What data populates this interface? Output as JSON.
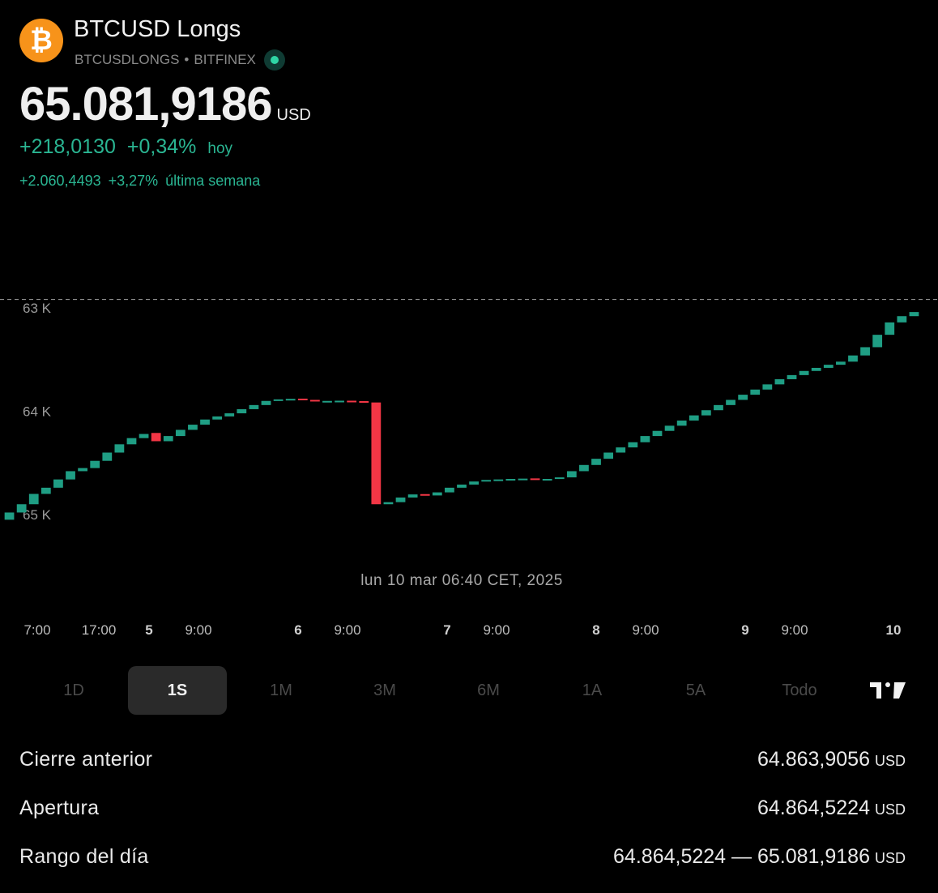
{
  "header": {
    "logo_symbol": "₿",
    "name": "BTCUSD Longs",
    "ticker": "BTCUSDLONGS",
    "separator": "•",
    "exchange": "BITFINEX",
    "status_icon": "market-open-dot-icon"
  },
  "quote": {
    "price": "65.081,9186",
    "currency": "USD",
    "change": "+218,0130",
    "change_pct": "+0,34%",
    "change_label": "hoy",
    "week_change": "+2.060,4493",
    "week_change_pct": "+3,27%",
    "week_label": "última semana"
  },
  "chart": {
    "y_labels": [
      "65 K",
      "64 K",
      "63 K"
    ],
    "tooltip": "lun 10 mar 06:40 CET, 2025",
    "x_labels": [
      {
        "text": "7:00",
        "day": false
      },
      {
        "text": "17:00",
        "day": false
      },
      {
        "text": "5",
        "day": true
      },
      {
        "text": "9:00",
        "day": false
      },
      {
        "text": "6",
        "day": true
      },
      {
        "text": "9:00",
        "day": false
      },
      {
        "text": "7",
        "day": true
      },
      {
        "text": "9:00",
        "day": false
      },
      {
        "text": "8",
        "day": true
      },
      {
        "text": "9:00",
        "day": false
      },
      {
        "text": "9",
        "day": true
      },
      {
        "text": "9:00",
        "day": false
      },
      {
        "text": "10",
        "day": true
      }
    ]
  },
  "chart_data": {
    "type": "candlestick",
    "title": "",
    "ylim": [
      62700,
      65100
    ],
    "y_ticks": [
      63000,
      64000,
      65000
    ],
    "last_price": 65081.9186,
    "colors": {
      "up": "#1f9e84",
      "down": "#f23645"
    },
    "candles": [
      {
        "o": 62950,
        "c": 63020
      },
      {
        "o": 63020,
        "c": 63100
      },
      {
        "o": 63100,
        "c": 63200
      },
      {
        "o": 63200,
        "c": 63260
      },
      {
        "o": 63260,
        "c": 63340
      },
      {
        "o": 63340,
        "c": 63420
      },
      {
        "o": 63420,
        "c": 63450
      },
      {
        "o": 63450,
        "c": 63520
      },
      {
        "o": 63520,
        "c": 63600
      },
      {
        "o": 63600,
        "c": 63680
      },
      {
        "o": 63680,
        "c": 63740
      },
      {
        "o": 63740,
        "c": 63780
      },
      {
        "o": 63790,
        "c": 63710
      },
      {
        "o": 63710,
        "c": 63760
      },
      {
        "o": 63760,
        "c": 63820
      },
      {
        "o": 63820,
        "c": 63870
      },
      {
        "o": 63870,
        "c": 63920
      },
      {
        "o": 63920,
        "c": 63950
      },
      {
        "o": 63950,
        "c": 63980
      },
      {
        "o": 63980,
        "c": 64020
      },
      {
        "o": 64020,
        "c": 64060
      },
      {
        "o": 64060,
        "c": 64100
      },
      {
        "o": 64100,
        "c": 64115
      },
      {
        "o": 64115,
        "c": 64120
      },
      {
        "o": 64122,
        "c": 64110
      },
      {
        "o": 64110,
        "c": 64095
      },
      {
        "o": 64095,
        "c": 64100
      },
      {
        "o": 64100,
        "c": 64102
      },
      {
        "o": 64102,
        "c": 64098
      },
      {
        "o": 64098,
        "c": 64085
      },
      {
        "o": 64085,
        "c": 63100
      },
      {
        "o": 63100,
        "c": 63120
      },
      {
        "o": 63120,
        "c": 63165
      },
      {
        "o": 63165,
        "c": 63195
      },
      {
        "o": 63198,
        "c": 63185
      },
      {
        "o": 63185,
        "c": 63215
      },
      {
        "o": 63215,
        "c": 63260
      },
      {
        "o": 63260,
        "c": 63290
      },
      {
        "o": 63290,
        "c": 63320
      },
      {
        "o": 63320,
        "c": 63335
      },
      {
        "o": 63335,
        "c": 63340
      },
      {
        "o": 63340,
        "c": 63345
      },
      {
        "o": 63345,
        "c": 63348
      },
      {
        "o": 63350,
        "c": 63340
      },
      {
        "o": 63340,
        "c": 63345
      },
      {
        "o": 63345,
        "c": 63360
      },
      {
        "o": 63360,
        "c": 63420
      },
      {
        "o": 63420,
        "c": 63480
      },
      {
        "o": 63480,
        "c": 63540
      },
      {
        "o": 63540,
        "c": 63600
      },
      {
        "o": 63600,
        "c": 63650
      },
      {
        "o": 63650,
        "c": 63700
      },
      {
        "o": 63700,
        "c": 63760
      },
      {
        "o": 63760,
        "c": 63810
      },
      {
        "o": 63810,
        "c": 63860
      },
      {
        "o": 63860,
        "c": 63910
      },
      {
        "o": 63910,
        "c": 63960
      },
      {
        "o": 63960,
        "c": 64010
      },
      {
        "o": 64010,
        "c": 64060
      },
      {
        "o": 64060,
        "c": 64110
      },
      {
        "o": 64110,
        "c": 64160
      },
      {
        "o": 64160,
        "c": 64210
      },
      {
        "o": 64210,
        "c": 64260
      },
      {
        "o": 64260,
        "c": 64310
      },
      {
        "o": 64310,
        "c": 64350
      },
      {
        "o": 64350,
        "c": 64390
      },
      {
        "o": 64390,
        "c": 64420
      },
      {
        "o": 64420,
        "c": 64450
      },
      {
        "o": 64450,
        "c": 64480
      },
      {
        "o": 64480,
        "c": 64540
      },
      {
        "o": 64540,
        "c": 64620
      },
      {
        "o": 64620,
        "c": 64740
      },
      {
        "o": 64740,
        "c": 64860
      },
      {
        "o": 64860,
        "c": 64920
      },
      {
        "o": 64920,
        "c": 64960
      }
    ]
  },
  "ranges": [
    {
      "label": "1D",
      "active": false
    },
    {
      "label": "1S",
      "active": true
    },
    {
      "label": "1M",
      "active": false
    },
    {
      "label": "3M",
      "active": false
    },
    {
      "label": "6M",
      "active": false
    },
    {
      "label": "1A",
      "active": false
    },
    {
      "label": "5A",
      "active": false
    },
    {
      "label": "Todo",
      "active": false
    }
  ],
  "tv_logo_icon": "tradingview-logo-icon",
  "stats": {
    "prev_close": {
      "label": "Cierre anterior",
      "value": "64.863,9056",
      "unit": "USD"
    },
    "open": {
      "label": "Apertura",
      "value": "64.864,5224",
      "unit": "USD"
    },
    "day_range": {
      "label": "Rango del día",
      "value": "64.864,5224 — 65.081,9186",
      "unit": "USD"
    }
  }
}
